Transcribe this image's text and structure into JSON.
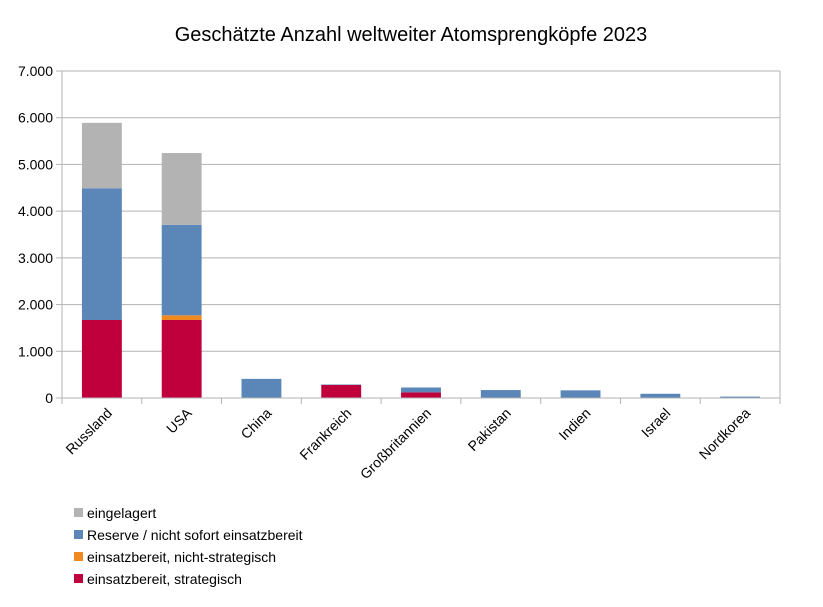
{
  "chart_data": {
    "type": "bar",
    "stacked": true,
    "title": "Geschätzte Anzahl weltweiter Atomsprengköpfe 2023",
    "xlabel": "",
    "ylabel": "",
    "ylim": [
      0,
      7000
    ],
    "yticks": [
      0,
      1000,
      2000,
      3000,
      4000,
      5000,
      6000,
      7000
    ],
    "ytick_labels": [
      "0",
      "1.000",
      "2.000",
      "3.000",
      "4.000",
      "5.000",
      "6.000",
      "7.000"
    ],
    "grid": true,
    "legend_position": "bottom-left",
    "categories": [
      "Russland",
      "USA",
      "China",
      "Frankreich",
      "Großbritannien",
      "Pakistan",
      "Indien",
      "Israel",
      "Nordkorea"
    ],
    "series": [
      {
        "name": "einsatzbereit, strategisch",
        "color": "#c0003c",
        "values": [
          1670,
          1670,
          0,
          280,
          120,
          0,
          0,
          0,
          0
        ]
      },
      {
        "name": "einsatzbereit, nicht-strategisch",
        "color": "#f08a20",
        "values": [
          0,
          100,
          0,
          0,
          0,
          0,
          0,
          0,
          0
        ]
      },
      {
        "name": "Reserve / nicht sofort einsatzbereit",
        "color": "#5b87b8",
        "values": [
          2820,
          1938,
          410,
          10,
          105,
          170,
          164,
          90,
          30
        ]
      },
      {
        "name": "eingelagert",
        "color": "#b3b3b3",
        "values": [
          1400,
          1536,
          0,
          0,
          0,
          0,
          0,
          0,
          0
        ]
      }
    ],
    "legend_order": [
      "eingelagert",
      "Reserve / nicht sofort einsatzbereit",
      "einsatzbereit, nicht-strategisch",
      "einsatzbereit, strategisch"
    ]
  }
}
